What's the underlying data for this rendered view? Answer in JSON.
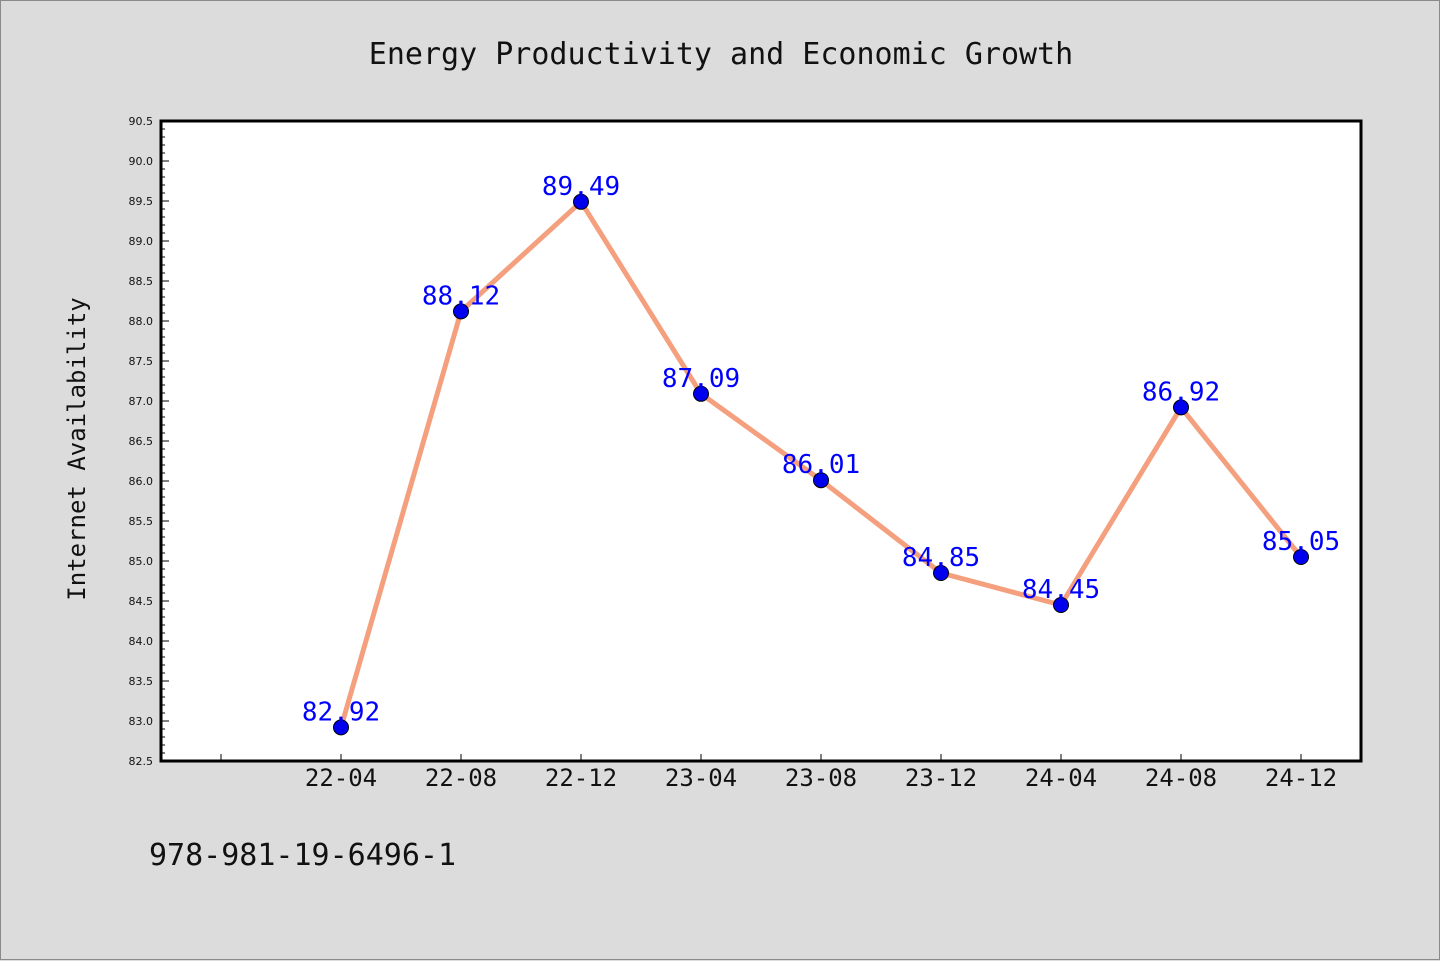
{
  "chart_data": {
    "type": "line",
    "title": "Energy Productivity and Economic Growth",
    "xlabel": "",
    "ylabel": "Internet Availability",
    "x": [
      "22-04",
      "22-08",
      "22-12",
      "23-04",
      "23-08",
      "23-12",
      "24-04",
      "24-08",
      "24-12"
    ],
    "series": [
      {
        "values": [
          82.92,
          88.12,
          89.49,
          87.09,
          86.01,
          84.85,
          84.45,
          86.92,
          85.05
        ]
      }
    ],
    "data_labels": [
      "82.92",
      "88.12",
      "89.49",
      "87.09",
      "86.01",
      "84.85",
      "84.45",
      "86.92",
      "85.05"
    ],
    "ylim": [
      82.5,
      90.5
    ],
    "y_ticks": [
      "82.5",
      "83.0",
      "83.5",
      "84.0",
      "84.5",
      "85.0",
      "85.5",
      "86.0",
      "86.5",
      "87.0",
      "87.5",
      "88.0",
      "88.5",
      "89.0",
      "89.5",
      "90.0",
      "90.5"
    ],
    "grid": false,
    "legend": "none",
    "colors": {
      "line": "#f4a07e",
      "marker": "#0000ee",
      "data_label": "#0000ff",
      "background": "#dcdcdc",
      "plot_bg": "#ffffff"
    }
  },
  "footnote": "978-981-19-6496-1"
}
